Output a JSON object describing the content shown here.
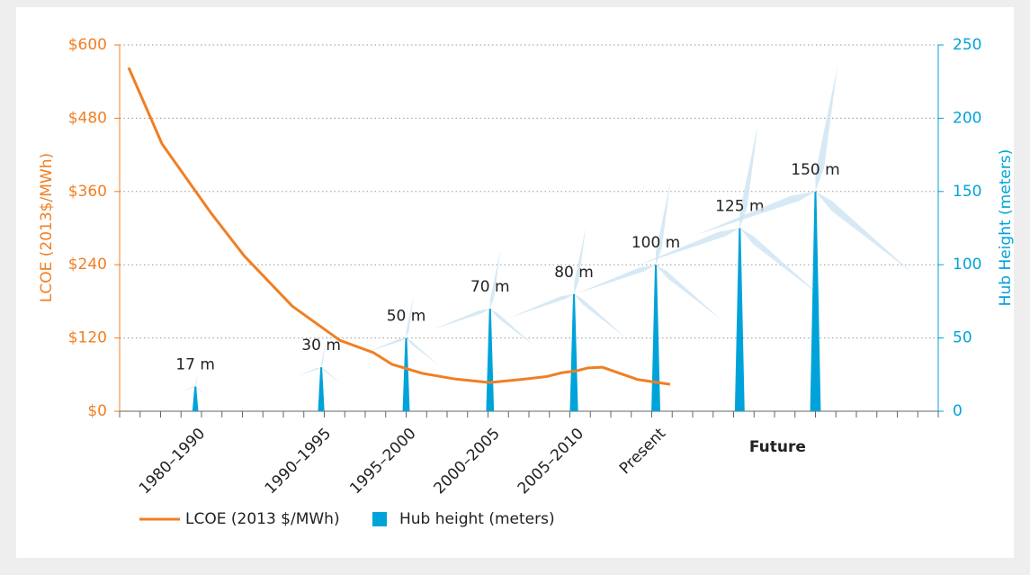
{
  "chart_data": {
    "type": "line_bar",
    "categories": [
      "1980–1990",
      "1990–1995",
      "1995–2000",
      "2000–2005",
      "2005–2010",
      "Present"
    ],
    "future_label": "Future",
    "xlim": [
      0,
      40
    ],
    "ylim": [
      0,
      600
    ],
    "yticks": [
      {
        "value": 0,
        "label": "$0"
      },
      {
        "value": 120,
        "label": "$120"
      },
      {
        "value": 240,
        "label": "$240"
      },
      {
        "value": 360,
        "label": "$360"
      },
      {
        "value": 480,
        "label": "$480"
      },
      {
        "value": 600,
        "label": "$600"
      }
    ],
    "y2lim": [
      0,
      250
    ],
    "y2ticks": [
      0,
      50,
      100,
      150,
      200,
      250
    ],
    "ylabel": "LCOE (2013$/MWh)",
    "y2label": "Hub Height (meters)",
    "grid": true,
    "series": [
      {
        "name": "LCOE (2013 $/MWh)",
        "type": "line",
        "color": "#f07f23",
        "x": [
          0.44,
          2.07,
          4.48,
          6.1,
          8.44,
          10.77,
          12.4,
          13.3,
          14.8,
          16.35,
          18.07,
          19.6,
          20.9,
          21.6,
          22.3,
          22.9,
          23.6,
          25.3,
          26.9
        ],
        "values": [
          563,
          438,
          324,
          254,
          172,
          116,
          96,
          77,
          62,
          53,
          47,
          52,
          57,
          63,
          66,
          71,
          72,
          52,
          44
        ]
      },
      {
        "name": "Hub height (meters)",
        "type": "bar",
        "axis": "y2",
        "color": "#00a3d9",
        "x": [
          3.7,
          9.85,
          14,
          18.1,
          22.2,
          26.2,
          30.3,
          34
        ],
        "values": [
          17,
          30,
          50,
          70,
          80,
          100,
          125,
          150
        ],
        "value_labels": [
          "17 m",
          "30 m",
          "50 m",
          "70 m",
          "80 m",
          "100 m",
          "125 m",
          "150 m"
        ]
      }
    ]
  }
}
